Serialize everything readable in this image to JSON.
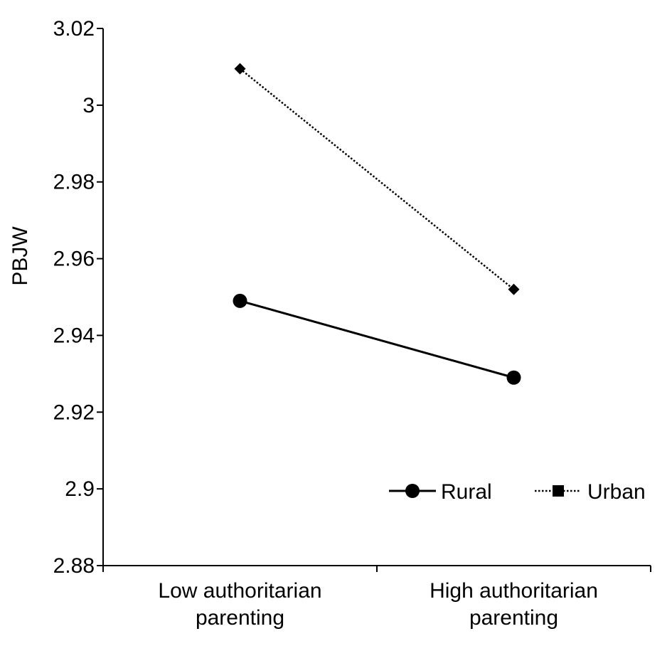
{
  "chart_data": {
    "type": "line",
    "title": "",
    "xlabel": "",
    "ylabel": "PBJW",
    "ylim": [
      2.88,
      3.02
    ],
    "yticks": [
      "2.88",
      "2.9",
      "2.92",
      "2.94",
      "2.96",
      "2.98",
      "3",
      "3.02"
    ],
    "categories": [
      [
        "Low authoritarian",
        "parenting"
      ],
      [
        "High authoritarian",
        "parenting"
      ]
    ],
    "series": [
      {
        "name": "Rural",
        "values": [
          2.949,
          2.929
        ],
        "line_style": "solid",
        "marker": "circle",
        "color": "#000000"
      },
      {
        "name": "Urban",
        "values": [
          3.0095,
          2.952
        ],
        "line_style": "dotted",
        "marker": "diamond",
        "color": "#000000"
      }
    ],
    "legend": {
      "position": "bottom-right",
      "entries": [
        "Rural",
        "Urban"
      ]
    },
    "grid": false
  }
}
